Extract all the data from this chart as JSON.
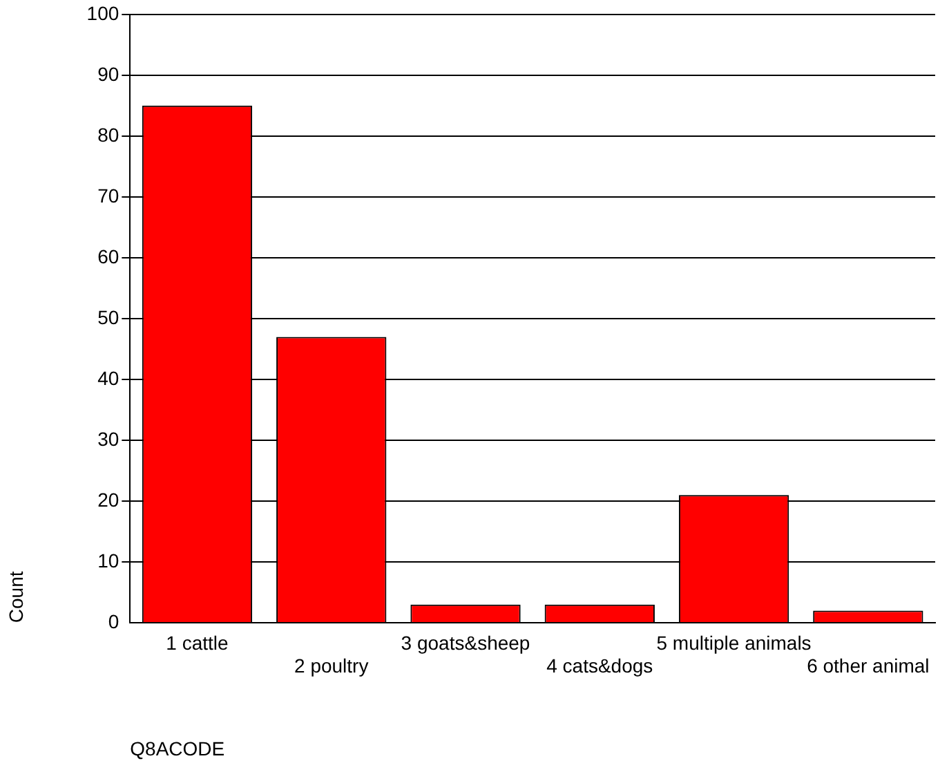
{
  "chart_data": {
    "type": "bar",
    "xlabel": "Q8ACODE",
    "ylabel": "Count",
    "categories": [
      "1 cattle",
      "2 poultry",
      "3 goats&sheep",
      "4 cats&dogs",
      "5 multiple animals",
      "6 other animal"
    ],
    "values": [
      85,
      47,
      3,
      3,
      21,
      2
    ],
    "color": "#ff0000",
    "ylim": [
      0,
      100
    ],
    "yticks": [
      0,
      10,
      20,
      30,
      40,
      50,
      60,
      70,
      80,
      90,
      100
    ],
    "grid": "y",
    "legend": false
  }
}
